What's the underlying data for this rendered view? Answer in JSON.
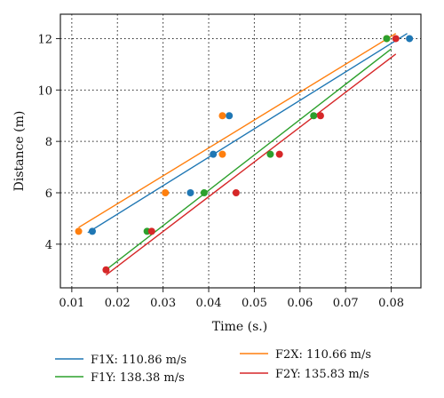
{
  "chart_data": {
    "type": "scatter",
    "xlabel": "Time (s.)",
    "ylabel": "Distance (m)",
    "xlim": [
      0.0075,
      0.0865
    ],
    "ylim": [
      2.3,
      12.95
    ],
    "xticks": [
      "0.01",
      "0.02",
      "0.03",
      "0.04",
      "0.05",
      "0.06",
      "0.07",
      "0.08"
    ],
    "yticks": [
      "4",
      "6",
      "8",
      "10",
      "12"
    ],
    "grid": true,
    "legend_position": "bottom",
    "series": [
      {
        "name": "F1X: 110.86 m/s",
        "color": "#1f77b4",
        "points": [
          [
            0.0145,
            4.5
          ],
          [
            0.036,
            6.0
          ],
          [
            0.041,
            7.5
          ],
          [
            0.0445,
            9.0
          ],
          [
            0.084,
            12.0
          ]
        ],
        "fit": [
          [
            0.0135,
            4.45
          ],
          [
            0.0835,
            12.2
          ]
        ]
      },
      {
        "name": "F2X: 110.66 m/s",
        "color": "#ff7f0e",
        "points": [
          [
            0.0115,
            4.5
          ],
          [
            0.0305,
            6.0
          ],
          [
            0.043,
            7.5
          ],
          [
            0.043,
            9.0
          ],
          [
            0.079,
            12.0
          ]
        ],
        "fit": [
          [
            0.0115,
            4.65
          ],
          [
            0.081,
            12.2
          ]
        ]
      },
      {
        "name": "F1Y: 138.38 m/s",
        "color": "#2ca02c",
        "points": [
          [
            0.0265,
            4.5
          ],
          [
            0.039,
            6.0
          ],
          [
            0.0535,
            7.5
          ],
          [
            0.063,
            9.0
          ],
          [
            0.079,
            12.0
          ]
        ],
        "fit": [
          [
            0.0175,
            3.0
          ],
          [
            0.08,
            11.6
          ]
        ]
      },
      {
        "name": "F2Y: 135.83 m/s",
        "color": "#d62728",
        "points": [
          [
            0.0175,
            3.0
          ],
          [
            0.0275,
            4.5
          ],
          [
            0.046,
            6.0
          ],
          [
            0.0555,
            7.5
          ],
          [
            0.0645,
            9.0
          ],
          [
            0.081,
            12.0
          ]
        ],
        "fit": [
          [
            0.0175,
            2.8
          ],
          [
            0.081,
            11.4
          ]
        ]
      }
    ]
  }
}
